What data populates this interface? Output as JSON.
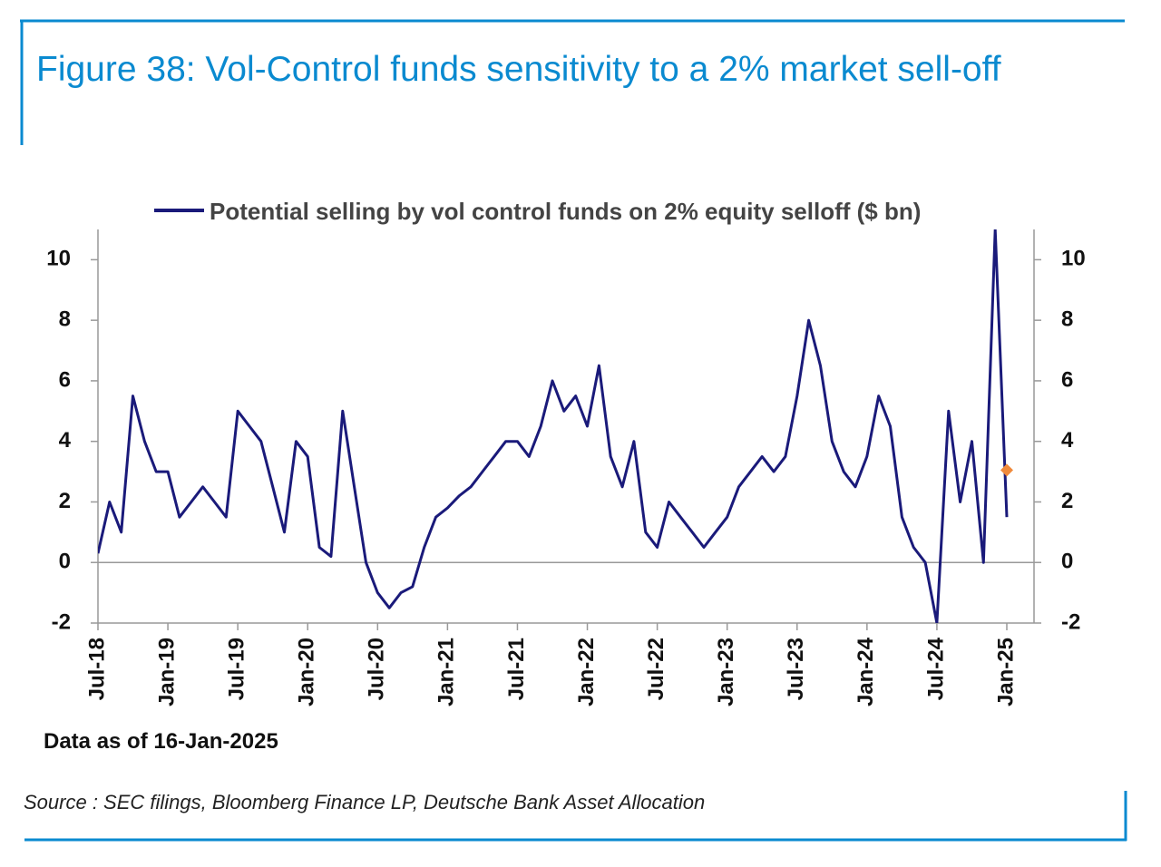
{
  "title": "Figure 38: Vol-Control funds sensitivity to a 2% market sell-off",
  "chart_data": {
    "type": "line",
    "x": [
      "2018-07",
      "2018-08",
      "2018-09",
      "2018-10",
      "2018-11",
      "2018-12",
      "2019-01",
      "2019-02",
      "2019-03",
      "2019-04",
      "2019-05",
      "2019-06",
      "2019-07",
      "2019-08",
      "2019-09",
      "2019-10",
      "2019-11",
      "2019-12",
      "2020-01",
      "2020-02",
      "2020-03",
      "2020-04",
      "2020-05",
      "2020-06",
      "2020-07",
      "2020-08",
      "2020-09",
      "2020-10",
      "2020-11",
      "2020-12",
      "2021-01",
      "2021-02",
      "2021-03",
      "2021-04",
      "2021-05",
      "2021-06",
      "2021-07",
      "2021-08",
      "2021-09",
      "2021-10",
      "2021-11",
      "2021-12",
      "2022-01",
      "2022-02",
      "2022-03",
      "2022-04",
      "2022-05",
      "2022-06",
      "2022-07",
      "2022-08",
      "2022-09",
      "2022-10",
      "2022-11",
      "2022-12",
      "2023-01",
      "2023-02",
      "2023-03",
      "2023-04",
      "2023-05",
      "2023-06",
      "2023-07",
      "2023-08",
      "2023-09",
      "2023-10",
      "2023-11",
      "2023-12",
      "2024-01",
      "2024-02",
      "2024-03",
      "2024-04",
      "2024-05",
      "2024-06",
      "2024-07",
      "2024-08",
      "2024-09",
      "2024-10",
      "2024-11",
      "2024-12",
      "2025-01"
    ],
    "series": [
      {
        "name": "Potential selling by vol control funds on 2% equity selloff ($ bn)",
        "color": "#1a1a7a",
        "values": [
          0.3,
          2.0,
          1.0,
          5.5,
          4.0,
          3.0,
          3.0,
          1.5,
          2.0,
          2.5,
          2.0,
          1.5,
          5.0,
          4.5,
          4.0,
          2.5,
          1.0,
          4.0,
          3.5,
          0.5,
          0.2,
          5.0,
          2.5,
          0.0,
          -1.0,
          -1.5,
          -1.0,
          -0.8,
          0.5,
          1.5,
          1.8,
          2.2,
          2.5,
          3.0,
          3.5,
          4.0,
          4.0,
          3.5,
          4.5,
          6.0,
          5.0,
          5.5,
          4.5,
          6.5,
          3.5,
          2.5,
          4.0,
          1.0,
          0.5,
          2.0,
          1.5,
          1.0,
          0.5,
          1.0,
          1.5,
          2.5,
          3.0,
          3.5,
          3.0,
          3.5,
          5.5,
          8.0,
          6.5,
          4.0,
          3.0,
          2.5,
          3.5,
          5.5,
          4.5,
          1.5,
          0.5,
          0.0,
          -2.0,
          5.0,
          2.0,
          4.0,
          0.0,
          11.0,
          1.5
        ]
      },
      {
        "color": "#f08a3c",
        "values": [
          null,
          null,
          null,
          null,
          null,
          null,
          null,
          null,
          null,
          null,
          null,
          null,
          null,
          null,
          null,
          null,
          null,
          null,
          null,
          null,
          null,
          null,
          null,
          null,
          null,
          null,
          null,
          null,
          null,
          null,
          null,
          null,
          null,
          null,
          null,
          null,
          null,
          null,
          null,
          null,
          null,
          null,
          null,
          null,
          null,
          null,
          null,
          null,
          null,
          null,
          null,
          null,
          null,
          null,
          null,
          null,
          null,
          null,
          null,
          null,
          null,
          null,
          null,
          null,
          null,
          null,
          null,
          null,
          null,
          null,
          null,
          null,
          null,
          null,
          null,
          null,
          null,
          null,
          3.05
        ]
      }
    ],
    "xticks": [
      {
        "value": "2018-07",
        "label": "Jul-18"
      },
      {
        "value": "2019-01",
        "label": "Jan-19"
      },
      {
        "value": "2019-07",
        "label": "Jul-19"
      },
      {
        "value": "2020-01",
        "label": "Jan-20"
      },
      {
        "value": "2020-07",
        "label": "Jul-20"
      },
      {
        "value": "2021-01",
        "label": "Jan-21"
      },
      {
        "value": "2021-07",
        "label": "Jul-21"
      },
      {
        "value": "2022-01",
        "label": "Jan-22"
      },
      {
        "value": "2022-07",
        "label": "Jul-22"
      },
      {
        "value": "2023-01",
        "label": "Jan-23"
      },
      {
        "value": "2023-07",
        "label": "Jul-23"
      },
      {
        "value": "2024-01",
        "label": "Jan-24"
      },
      {
        "value": "2024-07",
        "label": "Jul-24"
      },
      {
        "value": "2025-01",
        "label": "Jan-25"
      }
    ],
    "ylim": [
      -2,
      11
    ],
    "yticks": [
      -2,
      0,
      2,
      4,
      6,
      8,
      10
    ],
    "y2lim": [
      -2,
      11
    ],
    "y2ticks": [
      -2,
      0,
      2,
      4,
      6,
      8,
      10
    ],
    "note": "Data as of 16-Jan-2025"
  },
  "source": "Source : SEC filings, Bloomberg Finance LP, Deutsche Bank Asset Allocation"
}
